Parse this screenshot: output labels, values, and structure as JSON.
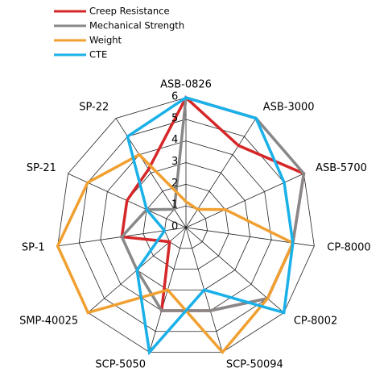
{
  "chart_data": {
    "type": "radar",
    "categories": [
      "ASB-0826",
      "ASB-3000",
      "ASB-5700",
      "CP-8000",
      "CP-8002",
      "SCP-50094",
      "SCP-5050",
      "SMP-40025",
      "SP-1",
      "SP-21",
      "SP-22"
    ],
    "series": [
      {
        "name": "Creep Resistance",
        "color": "#d62728",
        "values": [
          6,
          4.5,
          6,
          5,
          5,
          4,
          4,
          1,
          3,
          3,
          3.2
        ]
      },
      {
        "name": "Mechanical Strength",
        "color": "#888888",
        "values": [
          6,
          6,
          6,
          5,
          5,
          4,
          4,
          3,
          3,
          2,
          1
        ]
      },
      {
        "name": "Weight",
        "color": "#f0a030",
        "values": [
          1.2,
          1,
          2,
          5,
          5,
          6,
          3,
          6,
          6,
          5,
          4
        ]
      },
      {
        "name": "CTE",
        "color": "#1ab0e8",
        "values": [
          6,
          6,
          5,
          5,
          6,
          3,
          6,
          3,
          1,
          2,
          5
        ]
      }
    ],
    "rlim": [
      0,
      6
    ],
    "rticks": [
      0,
      1,
      2,
      3,
      4,
      5,
      6
    ],
    "grid": true,
    "legend": "top left"
  }
}
